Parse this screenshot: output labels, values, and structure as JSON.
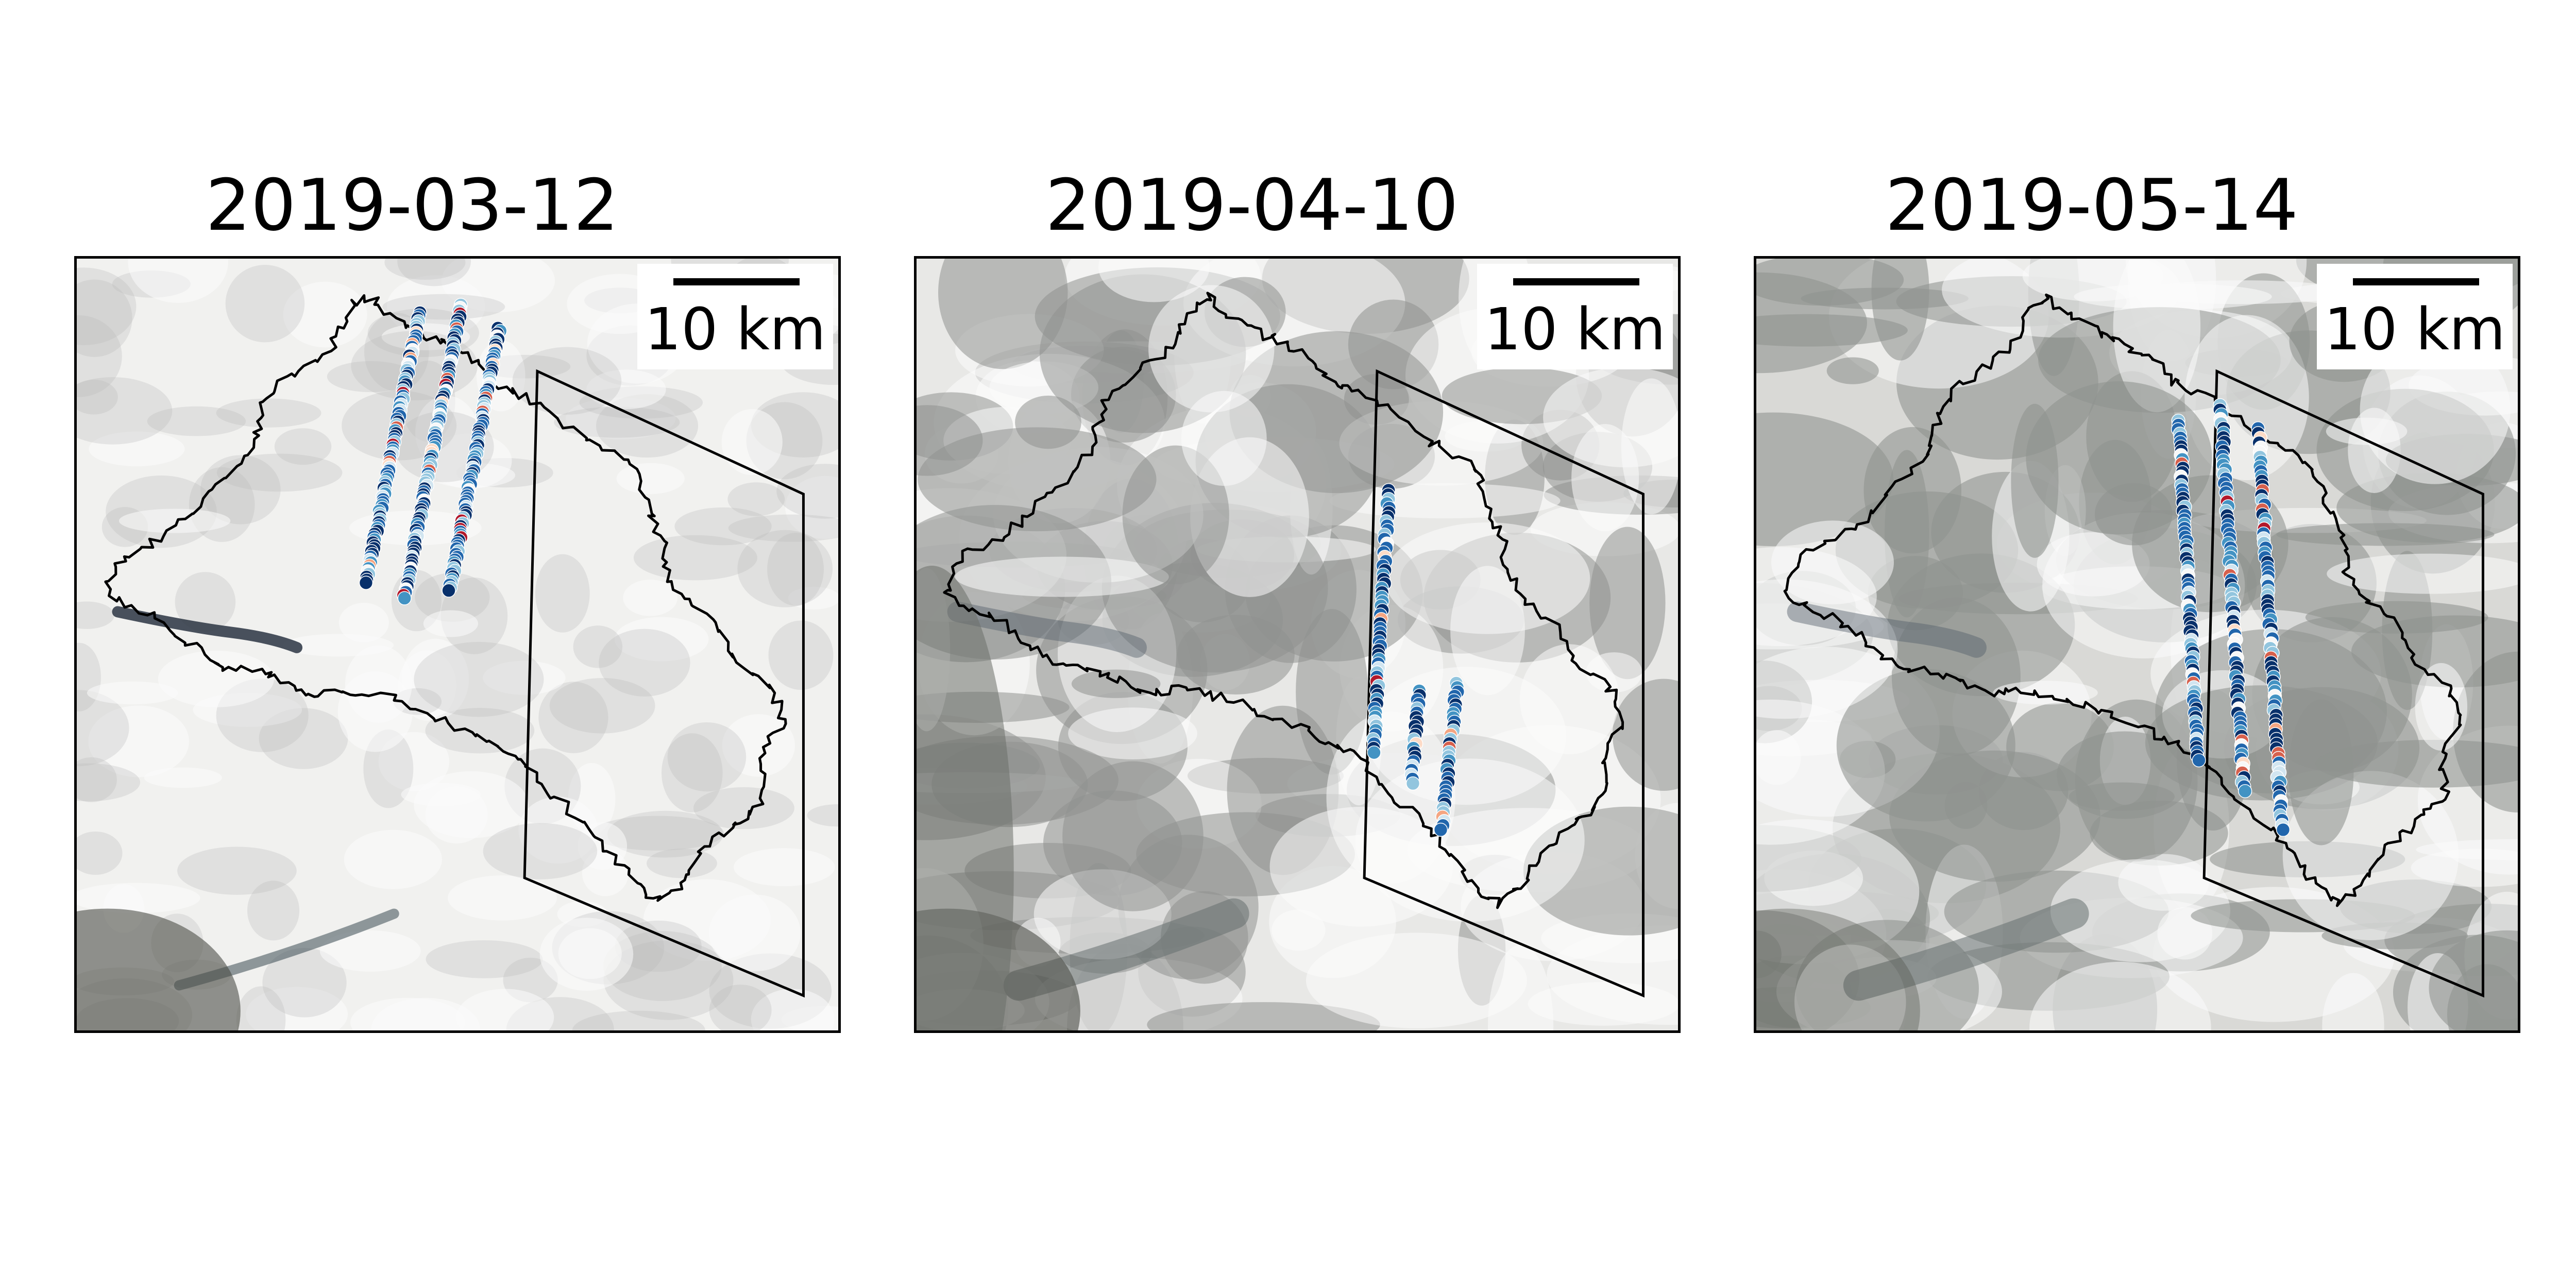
{
  "panels": [
    {
      "date": "2019-03-12",
      "scale_label": "10 km",
      "cloud_cover": 0.15,
      "tracks": [
        {
          "start": [
            0.45,
            0.07
          ],
          "end": [
            0.38,
            0.42
          ],
          "n": 95
        },
        {
          "start": [
            0.505,
            0.06
          ],
          "end": [
            0.43,
            0.44
          ],
          "n": 100
        },
        {
          "start": [
            0.555,
            0.09
          ],
          "end": [
            0.49,
            0.43
          ],
          "n": 95
        }
      ]
    },
    {
      "date": "2019-04-10",
      "scale_label": "10 km",
      "cloud_cover": 0.85,
      "tracks": [
        {
          "start": [
            0.62,
            0.3
          ],
          "end": [
            0.6,
            0.64
          ],
          "n": 60
        },
        {
          "start": [
            0.66,
            0.56
          ],
          "end": [
            0.65,
            0.68
          ],
          "n": 22
        },
        {
          "start": [
            0.71,
            0.55
          ],
          "end": [
            0.69,
            0.74
          ],
          "n": 35
        }
      ]
    },
    {
      "date": "2019-05-14",
      "scale_label": "10 km",
      "cloud_cover": 0.95,
      "tracks": [
        {
          "start": [
            0.555,
            0.21
          ],
          "end": [
            0.58,
            0.65
          ],
          "n": 80
        },
        {
          "start": [
            0.61,
            0.19
          ],
          "end": [
            0.64,
            0.69
          ],
          "n": 85
        },
        {
          "start": [
            0.66,
            0.22
          ],
          "end": [
            0.69,
            0.74
          ],
          "n": 85
        }
      ]
    }
  ],
  "colors": {
    "background": "#ffffff",
    "outline": "#000000",
    "snow": "#f2f2f0",
    "colormap": [
      "#08306b",
      "#2166ac",
      "#4393c3",
      "#92c5de",
      "#d1e5f0",
      "#f7f7f7",
      "#fddbc7",
      "#f4a582",
      "#d6604d",
      "#b2182b"
    ]
  }
}
